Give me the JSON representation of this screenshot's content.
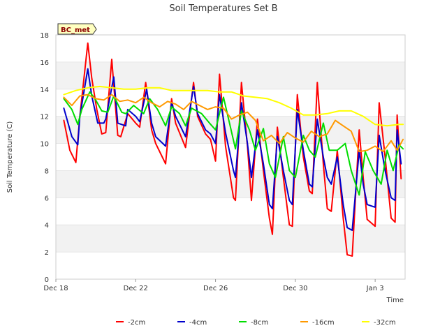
{
  "chart_data": {
    "type": "line",
    "title": "Soil Temperatures Set B",
    "xlabel": "Time",
    "ylabel": "Soil Temperature (C)",
    "site_label": "BC_met",
    "ylim": [
      0,
      18
    ],
    "y_ticks": [
      0,
      2,
      4,
      6,
      8,
      10,
      12,
      14,
      16,
      18
    ],
    "xlim": [
      0,
      17.5
    ],
    "x_ticks": [
      {
        "x": 0,
        "label": "Dec 18"
      },
      {
        "x": 4,
        "label": "Dec 22"
      },
      {
        "x": 8,
        "label": "Dec 26"
      },
      {
        "x": 12,
        "label": "Dec 30"
      },
      {
        "x": 16,
        "label": "Jan 3"
      }
    ],
    "grid": "horizontal alternating bands",
    "legend_position": "bottom",
    "series": [
      {
        "name": "-2cm",
        "color": "#ff0000",
        "x": [
          0.4,
          0.7,
          1.0,
          1.2,
          1.6,
          1.8,
          2.05,
          2.3,
          2.5,
          2.8,
          3.1,
          3.25,
          3.6,
          4.0,
          4.2,
          4.5,
          4.8,
          5.0,
          5.5,
          5.8,
          6.0,
          6.5,
          6.9,
          7.1,
          7.5,
          7.75,
          8.0,
          8.2,
          8.5,
          8.9,
          9.0,
          9.3,
          9.6,
          9.8,
          10.1,
          10.4,
          10.7,
          10.85,
          11.1,
          11.4,
          11.7,
          11.85,
          12.1,
          12.4,
          12.7,
          12.85,
          13.1,
          13.4,
          13.6,
          13.8,
          14.1,
          14.4,
          14.6,
          14.85,
          15.2,
          15.4,
          15.6,
          16.0,
          16.2,
          16.5,
          16.8,
          17.0,
          17.1,
          17.3
        ],
        "values": [
          11.7,
          9.5,
          8.6,
          12.0,
          17.4,
          14.8,
          12.5,
          10.7,
          10.8,
          16.2,
          10.6,
          10.5,
          12.2,
          11.5,
          11.2,
          14.5,
          11.0,
          10.0,
          8.5,
          13.3,
          11.5,
          9.7,
          14.5,
          12.0,
          10.7,
          10.3,
          8.7,
          15.1,
          9.8,
          6.0,
          5.8,
          14.5,
          9.8,
          5.8,
          11.8,
          8.0,
          4.5,
          3.3,
          11.2,
          7.5,
          4.0,
          3.9,
          13.6,
          9.0,
          6.5,
          6.3,
          14.5,
          8.5,
          5.2,
          5.0,
          9.5,
          4.5,
          1.8,
          1.7,
          11.0,
          7.5,
          4.4,
          3.9,
          13.0,
          9.0,
          4.5,
          4.2,
          12.1,
          7.4
        ]
      },
      {
        "name": "-4cm",
        "color": "#0000cc",
        "x": [
          0.4,
          0.8,
          1.1,
          1.2,
          1.6,
          1.8,
          2.1,
          2.4,
          2.5,
          2.9,
          3.1,
          3.5,
          3.6,
          4.0,
          4.2,
          4.55,
          4.8,
          5.0,
          5.5,
          5.8,
          6.0,
          6.5,
          6.9,
          7.1,
          7.5,
          7.75,
          8.0,
          8.2,
          8.5,
          8.9,
          9.0,
          9.3,
          9.6,
          9.8,
          10.1,
          10.4,
          10.7,
          10.85,
          11.1,
          11.4,
          11.7,
          11.85,
          12.1,
          12.4,
          12.7,
          12.85,
          13.1,
          13.4,
          13.6,
          13.8,
          14.1,
          14.4,
          14.6,
          14.85,
          15.2,
          15.4,
          15.6,
          16.0,
          16.2,
          16.5,
          16.8,
          17.0,
          17.1,
          17.3
        ],
        "values": [
          12.6,
          10.5,
          9.9,
          12.0,
          15.5,
          13.5,
          11.5,
          11.5,
          11.8,
          14.9,
          11.5,
          11.3,
          12.5,
          12.0,
          11.6,
          14.0,
          11.5,
          10.5,
          9.8,
          13.0,
          12.0,
          10.5,
          14.2,
          12.2,
          11.0,
          10.7,
          10.0,
          13.6,
          10.8,
          8.0,
          7.5,
          13.0,
          10.0,
          7.5,
          11.0,
          8.5,
          5.5,
          5.2,
          10.5,
          8.0,
          5.8,
          5.5,
          12.5,
          9.5,
          7.0,
          6.8,
          11.8,
          9.0,
          7.5,
          7.0,
          9.0,
          5.5,
          3.8,
          3.6,
          9.5,
          7.0,
          5.5,
          5.3,
          10.6,
          8.0,
          6.0,
          5.8,
          11.0,
          8.5
        ]
      },
      {
        "name": "-8cm",
        "color": "#00dd00",
        "x": [
          0.4,
          0.8,
          1.1,
          1.3,
          1.7,
          2.0,
          2.3,
          2.6,
          2.9,
          3.3,
          3.5,
          3.9,
          4.4,
          4.7,
          5.1,
          5.5,
          5.8,
          6.2,
          6.5,
          6.8,
          7.3,
          7.7,
          8.0,
          8.4,
          8.7,
          9.0,
          9.3,
          9.7,
          10.0,
          10.4,
          10.7,
          11.0,
          11.4,
          11.7,
          12.0,
          12.4,
          12.7,
          13.0,
          13.4,
          13.7,
          14.1,
          14.5,
          14.8,
          15.2,
          15.5,
          15.9,
          16.3,
          16.6,
          16.9,
          17.2,
          17.4
        ],
        "values": [
          13.3,
          12.5,
          11.4,
          12.5,
          13.8,
          13.2,
          12.4,
          12.3,
          13.5,
          12.3,
          12.2,
          12.8,
          12.2,
          13.3,
          12.5,
          11.3,
          12.7,
          12.2,
          11.3,
          12.6,
          12.2,
          11.5,
          11.0,
          13.4,
          11.5,
          9.6,
          12.4,
          11.0,
          9.5,
          11.1,
          8.5,
          7.5,
          10.5,
          8.0,
          7.5,
          10.6,
          9.5,
          9.0,
          11.5,
          9.5,
          9.5,
          10.0,
          8.0,
          6.2,
          9.4,
          8.0,
          7.0,
          9.5,
          8.0,
          9.9,
          9.6
        ]
      },
      {
        "name": "-16cm",
        "color": "#ff9900",
        "x": [
          0.4,
          0.8,
          1.2,
          1.6,
          2.0,
          2.4,
          2.8,
          3.2,
          3.6,
          4.0,
          4.4,
          4.8,
          5.2,
          5.6,
          6.0,
          6.4,
          6.8,
          7.2,
          7.6,
          8.0,
          8.4,
          8.8,
          9.2,
          9.6,
          10.0,
          10.4,
          10.8,
          11.2,
          11.6,
          12.0,
          12.4,
          12.8,
          13.2,
          13.6,
          14.0,
          14.4,
          14.8,
          15.2,
          15.6,
          16.0,
          16.4,
          16.8,
          17.1,
          17.4
        ],
        "values": [
          13.4,
          12.8,
          13.5,
          13.6,
          13.3,
          13.2,
          13.6,
          13.1,
          13.2,
          13.0,
          13.4,
          13.0,
          12.7,
          13.1,
          12.9,
          12.5,
          13.1,
          12.8,
          12.5,
          12.7,
          12.6,
          11.8,
          12.1,
          12.3,
          11.7,
          10.2,
          10.6,
          10.0,
          10.8,
          10.4,
          10.1,
          10.9,
          10.5,
          10.7,
          11.7,
          11.3,
          10.9,
          9.4,
          9.5,
          9.8,
          9.4,
          10.2,
          9.5,
          10.3
        ]
      },
      {
        "name": "-32cm",
        "color": "#ffff00",
        "x": [
          0.4,
          1.0,
          1.6,
          2.2,
          2.8,
          3.4,
          4.0,
          4.6,
          5.2,
          5.8,
          6.4,
          7.0,
          7.6,
          8.2,
          8.8,
          9.4,
          10.0,
          10.6,
          11.2,
          11.8,
          12.4,
          13.0,
          13.6,
          14.2,
          14.8,
          15.4,
          16.0,
          16.6,
          17.2,
          17.4
        ],
        "values": [
          13.6,
          13.9,
          14.1,
          14.2,
          14.1,
          14.0,
          14.0,
          14.1,
          14.1,
          13.9,
          13.9,
          13.9,
          13.9,
          13.8,
          13.8,
          13.5,
          13.4,
          13.3,
          13.0,
          12.6,
          12.1,
          12.1,
          12.2,
          12.4,
          12.4,
          12.0,
          11.4,
          11.3,
          11.4,
          11.4
        ]
      }
    ]
  }
}
